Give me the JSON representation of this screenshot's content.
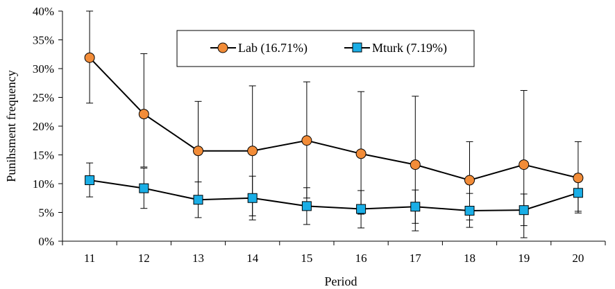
{
  "chart_data": {
    "type": "line",
    "title": "",
    "xlabel": "Period",
    "ylabel": "Punihsment frequency",
    "categories": [
      "11",
      "12",
      "13",
      "14",
      "15",
      "16",
      "17",
      "18",
      "19",
      "20"
    ],
    "ylim": [
      0,
      40
    ],
    "y_ticks": [
      0,
      5,
      10,
      15,
      20,
      25,
      30,
      35,
      40
    ],
    "y_tick_labels": [
      "0%",
      "5%",
      "10%",
      "15%",
      "20%",
      "25%",
      "30%",
      "35%",
      "40%"
    ],
    "grid": false,
    "legend_position": "top-center",
    "error_bars": true,
    "series": [
      {
        "name": "Lab (16.71%)",
        "marker": "circle",
        "color": "#f28c38",
        "values": [
          31.9,
          22.1,
          15.7,
          15.7,
          17.5,
          15.2,
          13.3,
          10.6,
          13.3,
          11.0
        ],
        "error_low": [
          24.0,
          12.9,
          7.2,
          4.4,
          7.5,
          4.7,
          1.8,
          3.7,
          0.6,
          5.2
        ],
        "error_high": [
          40.0,
          32.6,
          24.3,
          27.0,
          27.7,
          26.0,
          25.2,
          17.3,
          26.2,
          17.3
        ]
      },
      {
        "name": "Mturk (7.19%)",
        "marker": "square",
        "color": "#1aaee6",
        "values": [
          10.6,
          9.2,
          7.2,
          7.5,
          6.1,
          5.6,
          6.0,
          5.3,
          5.4,
          8.4
        ],
        "error_low": [
          7.7,
          5.7,
          4.1,
          3.7,
          2.9,
          2.3,
          3.1,
          2.4,
          2.7,
          4.9
        ],
        "error_high": [
          13.6,
          12.7,
          10.3,
          11.3,
          9.3,
          8.8,
          8.9,
          8.3,
          8.2,
          11.7
        ]
      }
    ]
  }
}
